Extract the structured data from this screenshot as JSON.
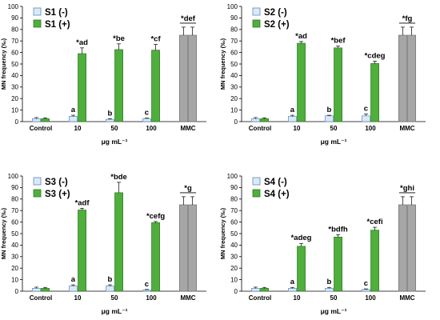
{
  "chart_data": [
    {
      "type": "bar",
      "legend": [
        "S1 (-)",
        "S1 (+)"
      ],
      "categories": [
        "Control",
        "10",
        "50",
        "100",
        "MMC"
      ],
      "series": [
        {
          "name": "S1 (-)",
          "values": [
            2.5,
            4.5,
            2,
            2.5,
            75
          ],
          "errors": [
            1,
            1,
            0.5,
            0.5,
            7
          ]
        },
        {
          "name": "S1 (+)",
          "values": [
            2.5,
            59,
            62.5,
            62,
            75
          ],
          "errors": [
            0.8,
            5,
            5,
            5,
            7
          ]
        }
      ],
      "minus_annotations": [
        "",
        "a",
        "b",
        "c"
      ],
      "plus_annotations": [
        "",
        "*ad",
        "*be",
        "*cf"
      ],
      "mmc_annotation": "*def",
      "ylabel": "MN frequency (‰)",
      "xlabel": "μg mL⁻¹",
      "yticks": [
        "0",
        "10",
        "20",
        "30",
        "40",
        "50",
        "60",
        "70",
        "80",
        "90",
        "100"
      ],
      "ylim": [
        0,
        100
      ],
      "colors": {
        "minus": "#dce9f5",
        "plus": "#4fae3c",
        "mmc": "#a6a6a6"
      }
    },
    {
      "type": "bar",
      "legend": [
        "S2 (-)",
        "S2 (+)"
      ],
      "categories": [
        "Control",
        "10",
        "50",
        "100",
        "MMC"
      ],
      "series": [
        {
          "name": "S2 (-)",
          "values": [
            2.5,
            4.5,
            5,
            5,
            75
          ],
          "errors": [
            1,
            1,
            0.5,
            1.5,
            7
          ]
        },
        {
          "name": "S2 (+)",
          "values": [
            2.5,
            68,
            64,
            50.5,
            75
          ],
          "errors": [
            0.8,
            1.5,
            1.5,
            2,
            7
          ]
        }
      ],
      "minus_annotations": [
        "",
        "a",
        "b",
        "c"
      ],
      "plus_annotations": [
        "",
        "*ad",
        "*bef",
        "*cdeg"
      ],
      "mmc_annotation": "*fg",
      "ylabel": "MN frequency (‰)",
      "xlabel": "μg mL⁻¹",
      "yticks": [
        "0",
        "10",
        "20",
        "30",
        "40",
        "50",
        "60",
        "70",
        "80",
        "90",
        "100"
      ],
      "ylim": [
        0,
        100
      ],
      "colors": {
        "minus": "#dce9f5",
        "plus": "#4fae3c",
        "mmc": "#a6a6a6"
      }
    },
    {
      "type": "bar",
      "legend": [
        "S3 (-)",
        "S3 (+)"
      ],
      "categories": [
        "Control",
        "10",
        "50",
        "100",
        "MMC"
      ],
      "series": [
        {
          "name": "S3 (-)",
          "values": [
            2.5,
            4.5,
            4.5,
            1,
            75
          ],
          "errors": [
            1,
            1,
            1,
            0.5,
            7
          ]
        },
        {
          "name": "S3 (+)",
          "values": [
            2.5,
            70.5,
            85.5,
            59.5,
            75
          ],
          "errors": [
            0.8,
            1.5,
            9,
            1,
            7
          ]
        }
      ],
      "minus_annotations": [
        "",
        "a",
        "b",
        "c"
      ],
      "plus_annotations": [
        "",
        "*adf",
        "*bde",
        "*cefg"
      ],
      "mmc_annotation": "*g",
      "ylabel": "MN frequency (‰)",
      "xlabel": "μg mL⁻¹",
      "yticks": [
        "0",
        "10",
        "20",
        "30",
        "40",
        "50",
        "60",
        "70",
        "80",
        "90",
        "100"
      ],
      "ylim": [
        0,
        100
      ],
      "colors": {
        "minus": "#dce9f5",
        "plus": "#4fae3c",
        "mmc": "#a6a6a6"
      }
    },
    {
      "type": "bar",
      "legend": [
        "S4 (-)",
        "S4 (+)"
      ],
      "categories": [
        "Control",
        "10",
        "50",
        "100",
        "MMC"
      ],
      "series": [
        {
          "name": "S4 (-)",
          "values": [
            2.5,
            2.5,
            2.5,
            1.5,
            75
          ],
          "errors": [
            1,
            0.8,
            0.8,
            0.5,
            7
          ]
        },
        {
          "name": "S4 (+)",
          "values": [
            2.5,
            39,
            47,
            53,
            75
          ],
          "errors": [
            0.8,
            2.5,
            2,
            2.5,
            7
          ]
        }
      ],
      "minus_annotations": [
        "",
        "a",
        "b",
        "c"
      ],
      "plus_annotations": [
        "",
        "*adeg",
        "*bdfh",
        "*cefi"
      ],
      "mmc_annotation": "*ghi",
      "ylabel": "MN frequency (‰)",
      "xlabel": "μg mL⁻¹",
      "yticks": [
        "0",
        "10",
        "20",
        "30",
        "40",
        "50",
        "60",
        "70",
        "80",
        "90",
        "100"
      ],
      "ylim": [
        0,
        100
      ],
      "colors": {
        "minus": "#dce9f5",
        "plus": "#4fae3c",
        "mmc": "#a6a6a6"
      }
    }
  ]
}
